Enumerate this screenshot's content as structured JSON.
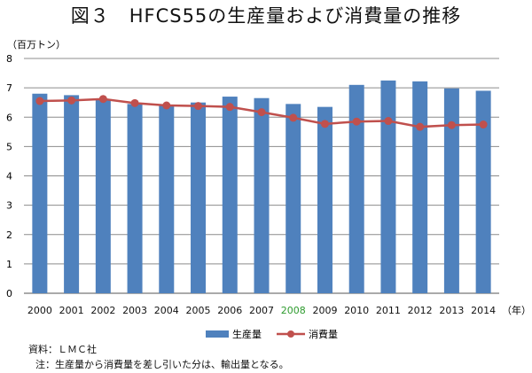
{
  "title": "図３　HFCS55の生産量および消費量の推移",
  "unit_label": "（百万トン）",
  "year_suffix": "（年）",
  "source": "資料：ＬＭＣ社",
  "note": "注：生産量から消費量を差し引いた分は、輸出量となる。",
  "colors": {
    "bar": "#4f81bd",
    "line": "#c0504d",
    "highlight_year": "#2e9b2e",
    "grid": "#8c8c8c"
  },
  "chart_data": {
    "type": "bar",
    "title": "図３　HFCS55の生産量および消費量の推移",
    "xlabel": "（年）",
    "ylabel": "（百万トン）",
    "categories": [
      "2000",
      "2001",
      "2002",
      "2003",
      "2004",
      "2005",
      "2006",
      "2007",
      "2008",
      "2009",
      "2010",
      "2011",
      "2012",
      "2013",
      "2014"
    ],
    "highlight_category": "2008",
    "ylim": [
      0,
      8
    ],
    "yticks": [
      0,
      1,
      2,
      3,
      4,
      5,
      6,
      7,
      8
    ],
    "grid": true,
    "legend": "bottom",
    "series": [
      {
        "name": "生産量",
        "kind": "bar",
        "values": [
          6.8,
          6.75,
          6.6,
          6.45,
          6.4,
          6.5,
          6.7,
          6.65,
          6.45,
          6.35,
          7.1,
          7.25,
          7.22,
          6.98,
          6.9
        ]
      },
      {
        "name": "消費量",
        "kind": "line",
        "values": [
          6.55,
          6.57,
          6.62,
          6.48,
          6.4,
          6.38,
          6.35,
          6.17,
          5.98,
          5.77,
          5.85,
          5.87,
          5.67,
          5.73,
          5.75
        ]
      }
    ]
  }
}
